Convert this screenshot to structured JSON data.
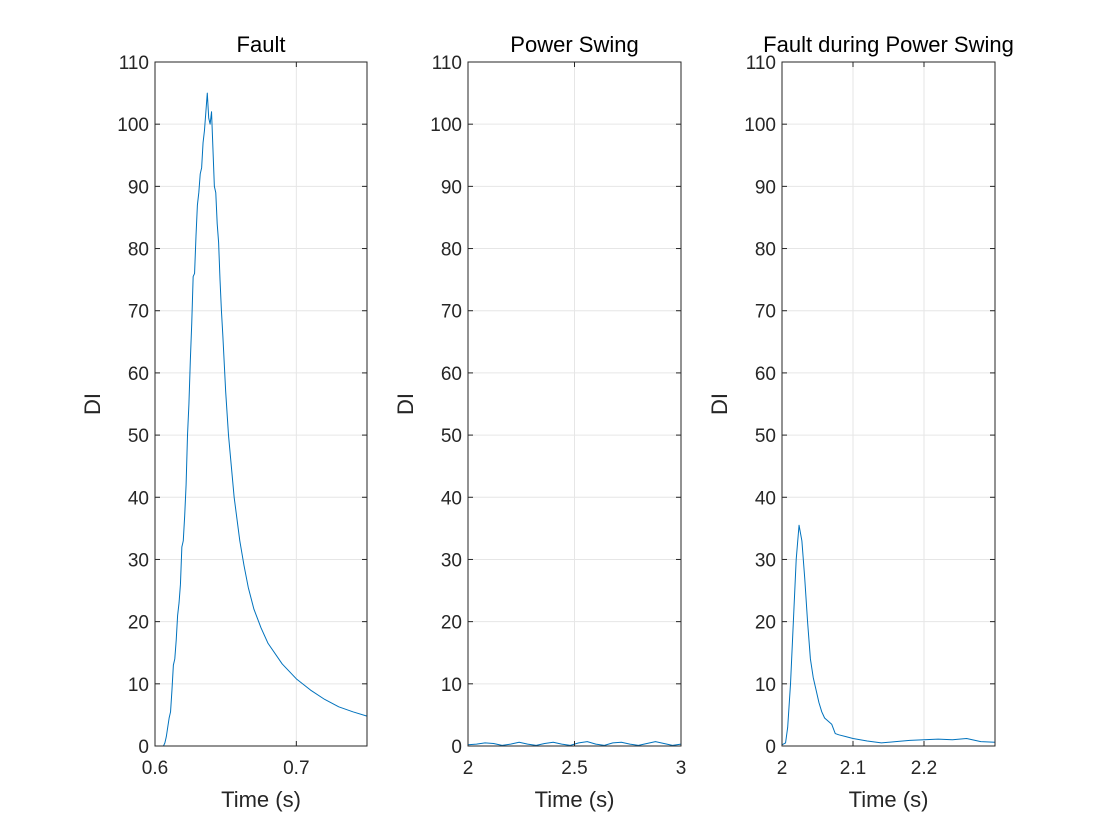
{
  "chart_data": [
    {
      "type": "line",
      "title": "Fault",
      "xlabel": "Time (s)",
      "ylabel": "DI",
      "xlim": [
        0.6,
        0.75
      ],
      "ylim": [
        0,
        110
      ],
      "xticks": [
        "0.6",
        "0.7"
      ],
      "xtick_values": [
        0.6,
        0.7
      ],
      "yticks": [
        "0",
        "10",
        "20",
        "30",
        "40",
        "50",
        "60",
        "70",
        "80",
        "90",
        "100",
        "110"
      ],
      "ytick_values": [
        0,
        10,
        20,
        30,
        40,
        50,
        60,
        70,
        80,
        90,
        100,
        110
      ],
      "grid": true,
      "color": "#0072BD",
      "series": [
        {
          "x": [
            0.6,
            0.606,
            0.607,
            0.608,
            0.609,
            0.61,
            0.611,
            0.612,
            0.613,
            0.614,
            0.615,
            0.616,
            0.617,
            0.618,
            0.619,
            0.62,
            0.621,
            0.622,
            0.623,
            0.624,
            0.625,
            0.626,
            0.627,
            0.628,
            0.629,
            0.63,
            0.631,
            0.632,
            0.633,
            0.634,
            0.635,
            0.636,
            0.637,
            0.638,
            0.639,
            0.64,
            0.641,
            0.642,
            0.643,
            0.644,
            0.645,
            0.646,
            0.647,
            0.648,
            0.65,
            0.652,
            0.654,
            0.656,
            0.658,
            0.66,
            0.663,
            0.666,
            0.67,
            0.675,
            0.68,
            0.69,
            0.7,
            0.71,
            0.72,
            0.73,
            0.74,
            0.75
          ],
          "y": [
            0,
            0,
            0.5,
            1.5,
            3,
            4.5,
            5.5,
            9,
            13,
            14,
            17,
            21,
            23,
            26,
            32,
            33,
            37,
            42,
            50,
            55,
            62,
            68,
            75.5,
            76,
            82,
            87,
            89,
            92,
            93,
            97,
            99,
            102,
            105,
            101,
            100,
            102,
            96,
            90,
            89,
            84,
            81,
            75,
            70,
            66,
            57,
            50,
            45,
            40,
            36.5,
            33,
            29,
            25.5,
            22,
            19,
            16.5,
            13.2,
            10.8,
            9,
            7.5,
            6.3,
            5.5,
            4.8
          ]
        }
      ]
    },
    {
      "type": "line",
      "title": "Power Swing",
      "xlabel": "Time (s)",
      "ylabel": "DI",
      "xlim": [
        2,
        3
      ],
      "ylim": [
        0,
        110
      ],
      "xticks": [
        "2",
        "2.5",
        "3"
      ],
      "xtick_values": [
        2,
        2.5,
        3
      ],
      "yticks": [
        "0",
        "10",
        "20",
        "30",
        "40",
        "50",
        "60",
        "70",
        "80",
        "90",
        "100",
        "110"
      ],
      "ytick_values": [
        0,
        10,
        20,
        30,
        40,
        50,
        60,
        70,
        80,
        90,
        100,
        110
      ],
      "grid": true,
      "color": "#0072BD",
      "series": [
        {
          "x": [
            2.0,
            2.04,
            2.08,
            2.12,
            2.16,
            2.2,
            2.24,
            2.28,
            2.32,
            2.36,
            2.4,
            2.44,
            2.48,
            2.52,
            2.56,
            2.6,
            2.64,
            2.68,
            2.72,
            2.76,
            2.8,
            2.84,
            2.88,
            2.92,
            2.96,
            3.0
          ],
          "y": [
            0.2,
            0.3,
            0.5,
            0.4,
            0.1,
            0.3,
            0.6,
            0.3,
            0.1,
            0.4,
            0.6,
            0.3,
            0.1,
            0.5,
            0.7,
            0.3,
            0.1,
            0.5,
            0.6,
            0.3,
            0.1,
            0.4,
            0.7,
            0.4,
            0.1,
            0.3
          ]
        }
      ]
    },
    {
      "type": "line",
      "title": "Fault during Power Swing",
      "xlabel": "Time (s)",
      "ylabel": "DI",
      "xlim": [
        2,
        2.3
      ],
      "ylim": [
        0,
        110
      ],
      "xticks": [
        "2",
        "2.1",
        "2.2"
      ],
      "xtick_values": [
        2,
        2.1,
        2.2
      ],
      "yticks": [
        "0",
        "10",
        "20",
        "30",
        "40",
        "50",
        "60",
        "70",
        "80",
        "90",
        "100",
        "110"
      ],
      "ytick_values": [
        0,
        10,
        20,
        30,
        40,
        50,
        60,
        70,
        80,
        90,
        100,
        110
      ],
      "grid": true,
      "color": "#0072BD",
      "series": [
        {
          "x": [
            2.0,
            2.005,
            2.008,
            2.012,
            2.016,
            2.02,
            2.024,
            2.028,
            2.032,
            2.036,
            2.04,
            2.044,
            2.048,
            2.052,
            2.056,
            2.06,
            2.065,
            2.07,
            2.075,
            2.08,
            2.09,
            2.1,
            2.11,
            2.12,
            2.14,
            2.16,
            2.18,
            2.2,
            2.22,
            2.24,
            2.26,
            2.28,
            2.3
          ],
          "y": [
            0.2,
            0.5,
            3,
            10,
            20,
            30,
            35.5,
            33,
            27,
            20,
            14,
            11,
            9,
            7,
            5.5,
            4.5,
            4,
            3.5,
            2,
            1.8,
            1.5,
            1.2,
            1,
            0.8,
            0.5,
            0.7,
            0.9,
            1.0,
            1.1,
            1.0,
            1.2,
            0.7,
            0.6
          ]
        }
      ]
    }
  ]
}
